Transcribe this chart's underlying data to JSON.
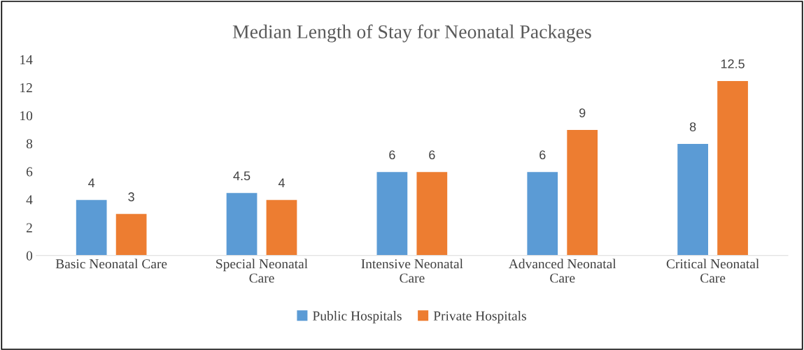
{
  "chart_data": {
    "type": "bar",
    "title": "Median Length of Stay for Neonatal Packages",
    "categories": [
      "Basic Neonatal Care",
      "Special Neonatal\nCare",
      "Intensive Neonatal\nCare",
      "Advanced Neonatal\nCare",
      "Critical Neonatal\nCare"
    ],
    "series": [
      {
        "name": "Public Hospitals",
        "color": "#5b9bd5",
        "values": [
          4,
          4.5,
          6,
          6,
          8
        ]
      },
      {
        "name": "Private Hospitals",
        "color": "#ed7d31",
        "values": [
          3,
          4,
          6,
          9,
          12.5
        ]
      }
    ],
    "ylim": [
      0,
      14
    ],
    "yticks": [
      0,
      2,
      4,
      6,
      8,
      10,
      12,
      14
    ],
    "grid": false,
    "legend": "bottom",
    "data_labels": true
  }
}
